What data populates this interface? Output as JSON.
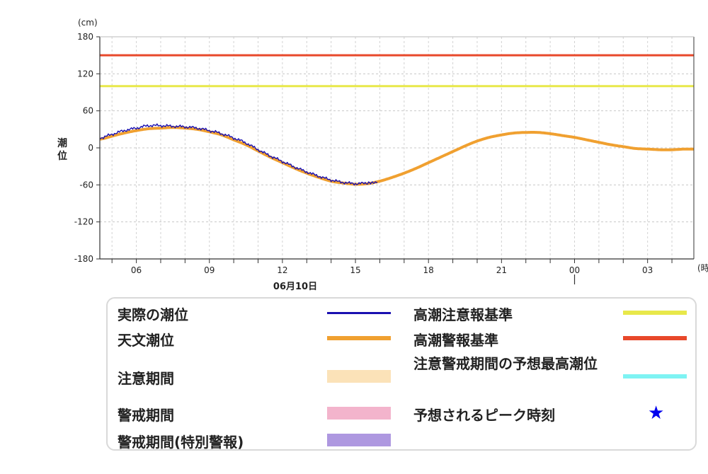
{
  "chart_data": {
    "type": "line",
    "y_unit": "(cm)",
    "ylabel": "潮位",
    "ylim": [
      -180,
      180
    ],
    "y_ticks": [
      180,
      120,
      60,
      0,
      -60,
      -120,
      -180
    ],
    "xlim": [
      4.5,
      28.9
    ],
    "x_ticks": [
      {
        "hour": 6,
        "label": "06"
      },
      {
        "hour": 9,
        "label": "09"
      },
      {
        "hour": 12,
        "label": "12"
      },
      {
        "hour": 15,
        "label": "15"
      },
      {
        "hour": 18,
        "label": "18"
      },
      {
        "hour": 21,
        "label": "21"
      },
      {
        "hour": 24,
        "label": "00"
      },
      {
        "hour": 27,
        "label": "03"
      }
    ],
    "x_unit": "(時",
    "date_label": "06月10日",
    "grid": true,
    "series": [
      {
        "name": "天文潮位",
        "color": "#f0a030",
        "x": [
          4.5,
          5.0,
          5.5,
          6.0,
          6.5,
          7.0,
          7.5,
          8.0,
          8.5,
          9.0,
          9.5,
          10.0,
          10.5,
          11.0,
          11.5,
          12.0,
          12.5,
          13.0,
          13.5,
          14.0,
          14.5,
          15.0,
          15.5,
          16.0,
          16.5,
          17.0,
          17.5,
          18.0,
          18.5,
          19.0,
          19.5,
          20.0,
          20.5,
          21.0,
          21.5,
          22.0,
          22.5,
          23.0,
          23.5,
          24.0,
          24.5,
          25.0,
          25.5,
          26.0,
          26.5,
          27.0,
          27.5,
          28.0,
          28.5,
          28.9
        ],
        "values": [
          14,
          19,
          24,
          28,
          31,
          32,
          33,
          32,
          30,
          26,
          21,
          13,
          5,
          -5,
          -15,
          -24,
          -33,
          -41,
          -48,
          -54,
          -57,
          -59,
          -58,
          -54,
          -48,
          -41,
          -33,
          -24,
          -15,
          -6,
          3,
          11,
          17,
          21,
          24,
          25,
          25,
          23,
          20,
          17,
          13,
          9,
          5,
          2,
          -1,
          -2,
          -3,
          -3,
          -2,
          -2
        ]
      },
      {
        "name": "実際の潮位",
        "color": "#1a10b0",
        "x": [
          4.5,
          5.0,
          5.5,
          6.0,
          6.5,
          7.0,
          7.5,
          8.0,
          8.5,
          9.0,
          9.5,
          10.0,
          10.5,
          11.0,
          11.5,
          12.0,
          12.5,
          13.0,
          13.5,
          14.0,
          14.5,
          15.0,
          15.5,
          15.9
        ],
        "values": [
          16,
          22,
          28,
          32,
          36,
          36,
          35,
          34,
          32,
          28,
          23,
          16,
          8,
          -3,
          -13,
          -22,
          -31,
          -39,
          -46,
          -52,
          -56,
          -58,
          -57,
          -56
        ]
      }
    ],
    "thresholds": [
      {
        "name": "高潮警報基準",
        "value": 150,
        "color": "#e8482a"
      },
      {
        "name": "高潮注意報基準",
        "value": 100,
        "color": "#e8e84a"
      }
    ]
  },
  "legend": {
    "items_left": [
      {
        "label": "実際の潮位",
        "swatch": "line",
        "color": "#1a10b0"
      },
      {
        "label": "天文潮位",
        "swatch": "line",
        "color": "#f0a030"
      },
      {
        "label": "注意期間",
        "swatch": "box",
        "color": "#fbe2b8"
      },
      {
        "label": "警戒期間",
        "swatch": "box",
        "color": "#f3b4cc"
      },
      {
        "label": "警戒期間(特別警報)",
        "swatch": "box",
        "color": "#ae98e0"
      }
    ],
    "items_right": [
      {
        "label": "高潮注意報基準",
        "swatch": "line",
        "color": "#e8e84a"
      },
      {
        "label": "高潮警報基準",
        "swatch": "line",
        "color": "#e8482a"
      },
      {
        "label": "注意警戒期間の予想最高潮位",
        "swatch": "line",
        "color": "#7ef3f3"
      },
      {
        "label": "予想されるピーク時刻",
        "swatch": "star",
        "color": "#0000ee",
        "icon": "star-icon",
        "glyph": "★"
      }
    ]
  }
}
